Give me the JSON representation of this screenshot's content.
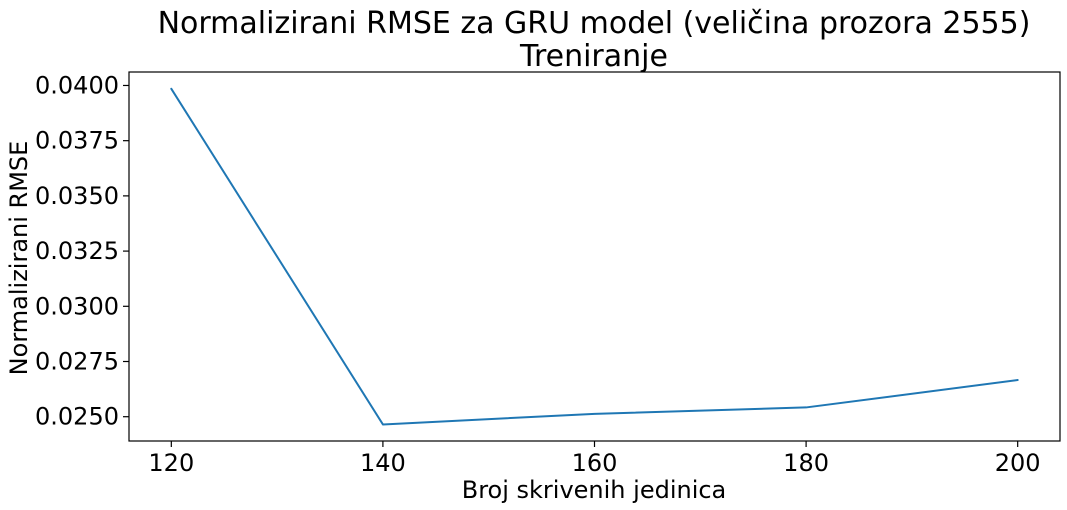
{
  "chart_data": {
    "type": "line",
    "title": "Normalizirani RMSE za GRU model (veličina prozora 2555)",
    "subtitle": "Treniranje",
    "xlabel": "Broj skrivenih jedinica",
    "ylabel": "Normalizirani RMSE",
    "x": [
      120,
      140,
      160,
      180,
      200
    ],
    "series": [
      {
        "values": [
          0.03985,
          0.02465,
          0.02513,
          0.02542,
          0.02666
        ],
        "color": "#1f77b4"
      }
    ],
    "xticks": [
      120,
      140,
      160,
      180,
      200
    ],
    "xtick_labels": [
      "120",
      "140",
      "160",
      "180",
      "200"
    ],
    "yticks": [
      0.025,
      0.0275,
      0.03,
      0.0325,
      0.035,
      0.0375,
      0.04
    ],
    "ytick_labels": [
      "0.0250",
      "0.0275",
      "0.0300",
      "0.0325",
      "0.0350",
      "0.0375",
      "0.0400"
    ],
    "xlim": [
      116,
      204
    ],
    "ylim": [
      0.0239,
      0.04061
    ],
    "grid": false,
    "legend": false
  }
}
